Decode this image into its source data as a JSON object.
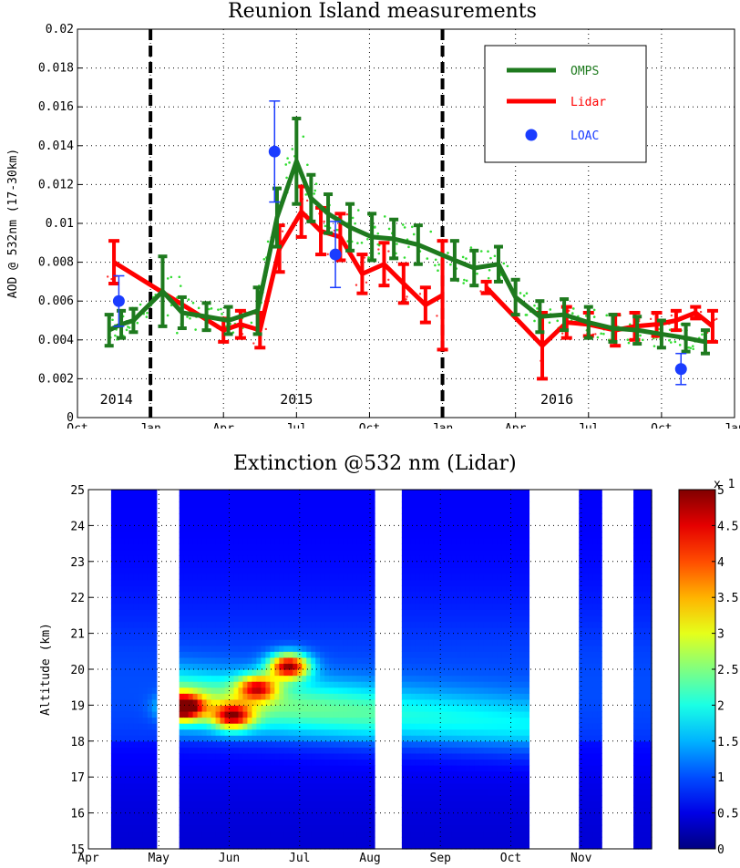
{
  "chart_data": [
    {
      "type": "line",
      "title": "Reunion Island measurements",
      "ylabel": "AOD @ 532nm (17-30km)",
      "xlabel": "",
      "ylim": [
        0,
        0.02
      ],
      "yticks": [
        "0",
        "0.002",
        "0.004",
        "0.006",
        "0.008",
        "0.01",
        "0.012",
        "0.014",
        "0.016",
        "0.018",
        "0.02"
      ],
      "xlim": [
        0,
        27
      ],
      "xticks": [
        {
          "label": "Oct",
          "x": 0
        },
        {
          "label": "Jan",
          "x": 3
        },
        {
          "label": "Apr",
          "x": 6
        },
        {
          "label": "Jul",
          "x": 9
        },
        {
          "label": "Oct",
          "x": 12
        },
        {
          "label": "Jan",
          "x": 15
        },
        {
          "label": "Apr",
          "x": 18
        },
        {
          "label": "Jul",
          "x": 21
        },
        {
          "label": "Oct",
          "x": 24
        },
        {
          "label": "Jan",
          "x": 27
        }
      ],
      "year_labels": [
        {
          "label": "2014",
          "x": 1.6
        },
        {
          "label": "2015",
          "x": 9.0
        },
        {
          "label": "2016",
          "x": 19.7
        }
      ],
      "year_dividers": [
        3,
        15
      ],
      "grid": true,
      "legend_position": "top-right",
      "series": [
        {
          "name": "OMPS",
          "color": "#1e7a1e",
          "x": [
            1.3,
            1.8,
            2.3,
            3.5,
            4.3,
            5.3,
            6.2,
            7.4,
            8.2,
            9.0,
            9.6,
            10.3,
            11.2,
            12.1,
            13.0,
            14.0,
            15.5,
            16.3,
            17.3,
            18.0,
            19.0,
            20.0,
            21.0,
            22.0,
            23.0,
            24.0,
            25.0,
            25.8
          ],
          "y": [
            0.0045,
            0.0048,
            0.005,
            0.0065,
            0.0054,
            0.0052,
            0.005,
            0.0055,
            0.0103,
            0.0132,
            0.0113,
            0.0105,
            0.0098,
            0.0093,
            0.0092,
            0.0089,
            0.0081,
            0.0077,
            0.0079,
            0.0062,
            0.0052,
            0.0053,
            0.0049,
            0.0046,
            0.0045,
            0.0043,
            0.0041,
            0.0039
          ],
          "err": [
            0.0008,
            0.0007,
            0.0006,
            0.0018,
            0.0008,
            0.0007,
            0.0007,
            0.0012,
            0.0015,
            0.0022,
            0.0012,
            0.001,
            0.0012,
            0.0012,
            0.001,
            0.001,
            0.001,
            0.0009,
            0.0009,
            0.0009,
            0.0008,
            0.0008,
            0.0008,
            0.0007,
            0.0007,
            0.0007,
            0.0007,
            0.0006
          ]
        },
        {
          "name": "Lidar",
          "color": "#ff0000",
          "x": [
            1.5,
            6.0,
            6.7,
            7.5,
            8.3,
            9.2,
            10.0,
            10.8,
            11.7,
            12.6,
            13.4,
            14.3,
            15.0,
            16.0,
            16.8,
            19.1,
            20.1,
            21.0,
            22.1,
            22.9,
            23.8,
            24.6,
            25.4,
            26.1
          ],
          "y": [
            0.008,
            0.0045,
            0.0048,
            0.0045,
            0.0087,
            0.0106,
            0.0096,
            0.0093,
            0.0074,
            0.0079,
            0.0069,
            0.0058,
            0.0063,
            null,
            0.0067,
            0.0037,
            0.0049,
            0.0048,
            0.0045,
            0.0047,
            0.0048,
            0.005,
            0.0054,
            0.0047
          ],
          "err": [
            0.0011,
            0.0006,
            0.0007,
            0.0009,
            0.0012,
            0.0013,
            0.0012,
            0.0012,
            0.001,
            0.0011,
            0.001,
            0.0009,
            0.0028,
            0,
            0.0003,
            0.0017,
            0.0008,
            0.0006,
            0.0008,
            0.0007,
            0.0006,
            0.0005,
            0.0003,
            0.0008
          ]
        },
        {
          "name": "LOAC",
          "color": "#1a3cff",
          "x": [
            1.7,
            8.1,
            10.6,
            24.8
          ],
          "y": [
            0.006,
            0.0137,
            0.0084,
            0.0025
          ],
          "err": [
            0.0013,
            0.0026,
            0.0017,
            0.0008
          ]
        }
      ]
    },
    {
      "type": "heatmap",
      "title": "Extinction @532 nm (Lidar)",
      "ylabel": "Altitude (km)",
      "ylim": [
        15,
        25
      ],
      "yticks": [
        "15",
        "16",
        "17",
        "18",
        "19",
        "20",
        "21",
        "22",
        "23",
        "24",
        "25"
      ],
      "xlim": [
        0,
        8
      ],
      "xticks": [
        {
          "label": "Apr",
          "x": 0
        },
        {
          "label": "May",
          "x": 1
        },
        {
          "label": "Jun",
          "x": 2
        },
        {
          "label": "Jul",
          "x": 3
        },
        {
          "label": "Aug",
          "x": 4
        },
        {
          "label": "Sep",
          "x": 5
        },
        {
          "label": "Oct",
          "x": 6
        },
        {
          "label": "Nov",
          "x": 7
        }
      ],
      "data_gaps": [
        [
          0,
          0.35
        ],
        [
          0.95,
          1.3
        ],
        [
          4.08,
          4.45
        ],
        [
          6.27,
          6.95
        ],
        [
          7.28,
          7.72
        ]
      ],
      "colorbar": {
        "ticks": [
          "0",
          "0.5",
          "1",
          "1.5",
          "2",
          "2.5",
          "3",
          "3.5",
          "4",
          "4.5",
          "5"
        ],
        "multiplier": "x 1",
        "range": [
          0,
          5
        ],
        "colormap": "jet"
      },
      "features": [
        {
          "desc": "peak",
          "x": 1.35,
          "alt": 18.95,
          "value": 5
        },
        {
          "desc": "peak",
          "x": 2.85,
          "alt": 20.1,
          "value": 5
        },
        {
          "desc": "peak",
          "x": 2.05,
          "alt": 18.7,
          "value": 3.8
        },
        {
          "desc": "peak",
          "x": 2.4,
          "alt": 19.5,
          "value": 3.5
        }
      ]
    }
  ]
}
